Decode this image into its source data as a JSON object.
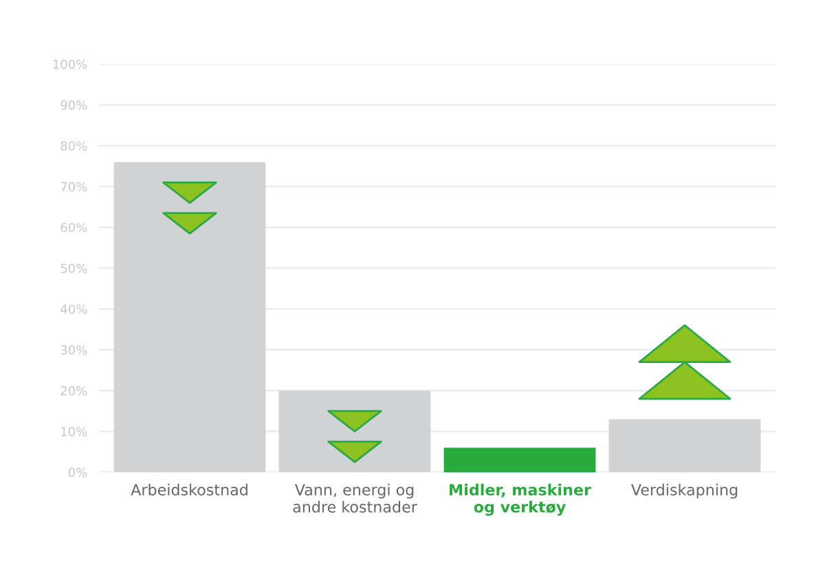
{
  "chart_data": {
    "type": "bar",
    "categories": [
      "Arbeidskostnad",
      "Vann, energi og\nandre kostnader",
      "Midler, maskiner\nog verktøy",
      "Verdiskapning"
    ],
    "values": [
      76,
      20,
      6,
      13
    ],
    "colors": [
      "#d1d2d4",
      "#d1d2d4",
      "#27ab3c",
      "#d1d2d4"
    ],
    "ylim": [
      0,
      100
    ],
    "yticks": [
      {
        "value": 0,
        "label": "0%"
      },
      {
        "value": 10,
        "label": "10%"
      },
      {
        "value": 20,
        "label": "20%"
      },
      {
        "value": 30,
        "label": "30%"
      },
      {
        "value": 40,
        "label": "40%"
      },
      {
        "value": 50,
        "label": "50%"
      },
      {
        "value": 60,
        "label": "60%"
      },
      {
        "value": 70,
        "label": "70%"
      },
      {
        "value": 80,
        "label": "80%"
      },
      {
        "value": 90,
        "label": "90%"
      },
      {
        "value": 100,
        "label": "100%"
      }
    ],
    "grid": "y"
  }
}
